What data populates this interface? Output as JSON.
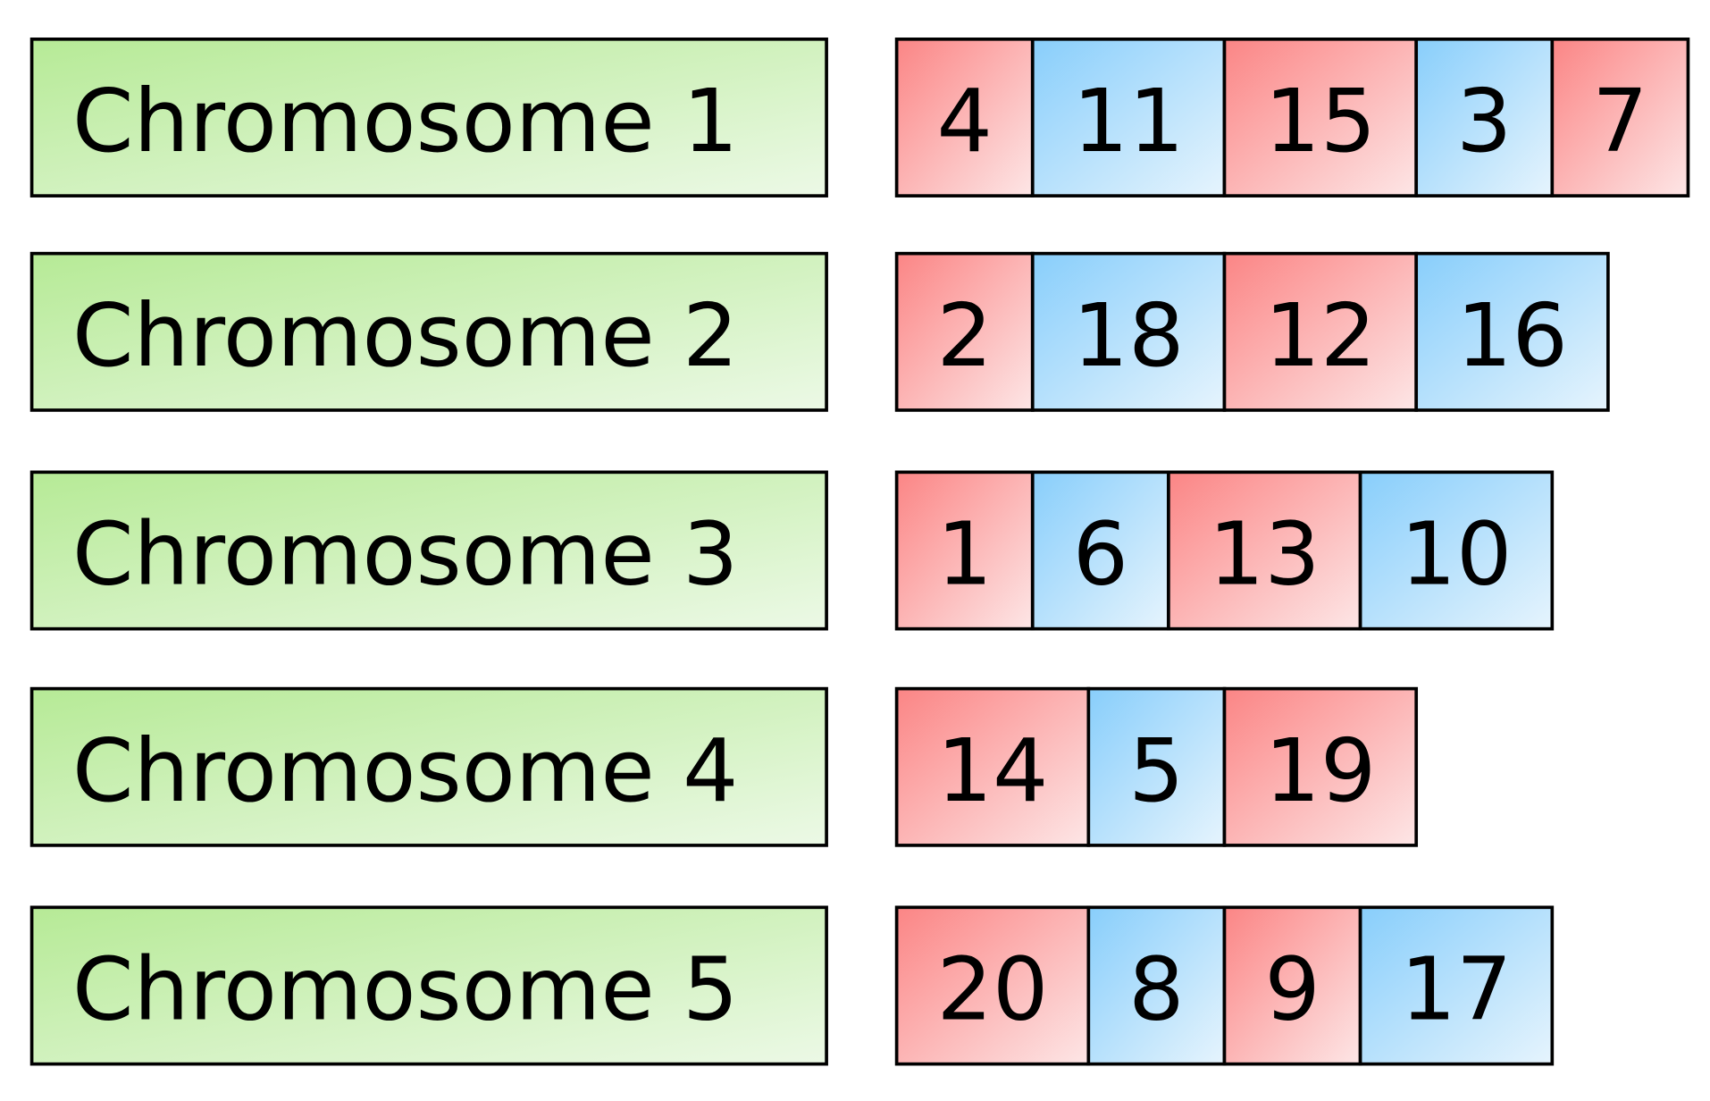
{
  "rows": [
    {
      "label": "Chromosome 1",
      "genes": [
        "4",
        "11",
        "15",
        "3",
        "7"
      ]
    },
    {
      "label": "Chromosome 2",
      "genes": [
        "2",
        "18",
        "12",
        "16"
      ]
    },
    {
      "label": "Chromosome 3",
      "genes": [
        "1",
        "6",
        "13",
        "10"
      ]
    },
    {
      "label": "Chromosome 4",
      "genes": [
        "14",
        "5",
        "19"
      ]
    },
    {
      "label": "Chromosome 5",
      "genes": [
        "20",
        "8",
        "9",
        "17"
      ]
    }
  ]
}
